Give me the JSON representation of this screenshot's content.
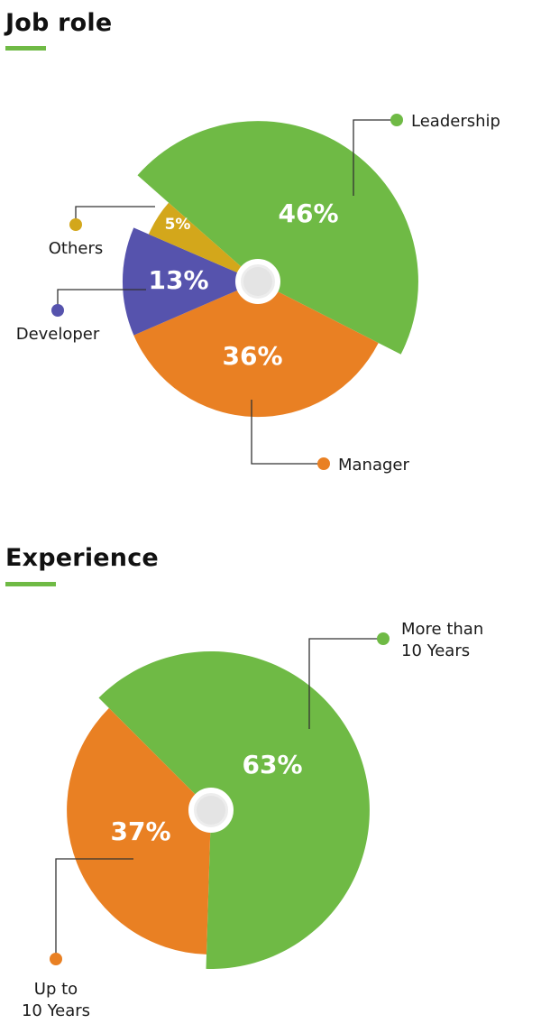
{
  "colors": {
    "accent": "#6fba45"
  },
  "chart_data": [
    {
      "type": "pie",
      "title": "Job role",
      "slices": [
        {
          "label": "Leadership",
          "value": 46,
          "display": "46%",
          "color": "#6fba45"
        },
        {
          "label": "Manager",
          "value": 36,
          "display": "36%",
          "color": "#e98023"
        },
        {
          "label": "Developer",
          "value": 13,
          "display": "13%",
          "color": "#5653ad"
        },
        {
          "label": "Others",
          "value": 5,
          "display": "5%",
          "color": "#d3a71b"
        }
      ]
    },
    {
      "type": "pie",
      "title": "Experience",
      "slices": [
        {
          "label": "More than 10 Years",
          "label_lines": [
            "More than",
            "10 Years"
          ],
          "value": 63,
          "display": "63%",
          "color": "#6fba45"
        },
        {
          "label": "Up to 10 Years",
          "label_lines": [
            "Up to",
            "10 Years"
          ],
          "value": 37,
          "display": "37%",
          "color": "#e98023"
        }
      ]
    }
  ]
}
